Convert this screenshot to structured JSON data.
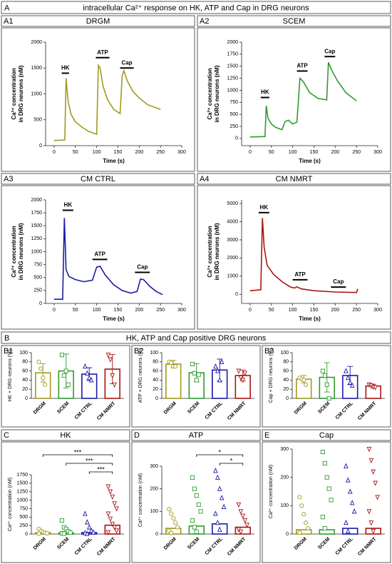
{
  "sections": [
    {
      "label": "A",
      "title": "intracellular Ca²⁺ response on HK, ATP and Cap in DRG neurons"
    },
    {
      "label": "B",
      "title": "HK, ATP and Cap positive DRG neurons"
    }
  ],
  "chart_data": [
    {
      "type": "line",
      "label": "A1",
      "title": "DRGM",
      "color": "#a09a1e",
      "x": [
        0,
        25,
        28,
        33,
        40,
        50,
        65,
        80,
        100,
        104,
        108,
        115,
        125,
        140,
        155,
        160,
        164,
        172,
        185,
        200,
        220,
        250
      ],
      "values": [
        100,
        110,
        1300,
        850,
        600,
        460,
        360,
        280,
        220,
        1550,
        1500,
        1150,
        900,
        700,
        620,
        1350,
        1450,
        1250,
        1050,
        920,
        790,
        700
      ],
      "xlim": [
        -20,
        300
      ],
      "xticks": [
        0,
        50,
        100,
        150,
        200,
        250,
        300
      ],
      "ylim": [
        0,
        2000
      ],
      "yticks": [
        0,
        500,
        1000,
        1500,
        2000
      ],
      "xlabel": "Time (s)",
      "ylabel": [
        "Ca²⁺ concentration",
        "in DRG neurons (nM)"
      ],
      "annotations": [
        {
          "text": "HK",
          "x": [
            18,
            35
          ],
          "y": 1400
        },
        {
          "text": "ATP",
          "x": [
            98,
            130
          ],
          "y": 1700
        },
        {
          "text": "Cap",
          "x": [
            155,
            187
          ],
          "y": 1500
        }
      ]
    },
    {
      "type": "line",
      "label": "A2",
      "title": "SCEM",
      "color": "#2e9b2e",
      "x": [
        0,
        35,
        38,
        42,
        50,
        60,
        75,
        82,
        90,
        100,
        110,
        117,
        125,
        140,
        160,
        180,
        184,
        190,
        205,
        225,
        250
      ],
      "values": [
        30,
        40,
        680,
        420,
        300,
        230,
        180,
        350,
        380,
        300,
        340,
        1250,
        1180,
        950,
        830,
        800,
        1580,
        1450,
        1200,
        950,
        780
      ],
      "xlim": [
        -20,
        300
      ],
      "xticks": [
        0,
        50,
        100,
        150,
        200,
        250,
        300
      ],
      "ylim": [
        -150,
        2000
      ],
      "yticks": [
        0,
        250,
        500,
        750,
        1000,
        1250,
        1500,
        1750,
        2000
      ],
      "xlabel": "Time (s)",
      "ylabel": [
        "Ca²⁺ concentration",
        "in DRG neurons (nM)"
      ],
      "annotations": [
        {
          "text": "HK",
          "x": [
            25,
            45
          ],
          "y": 850
        },
        {
          "text": "ATP",
          "x": [
            110,
            135
          ],
          "y": 1400
        },
        {
          "text": "Cap",
          "x": [
            175,
            200
          ],
          "y": 1700
        }
      ]
    },
    {
      "type": "line",
      "label": "A3",
      "title": "CM CTRL",
      "color": "#1a1aa8",
      "x": [
        0,
        20,
        24,
        28,
        35,
        50,
        70,
        90,
        100,
        108,
        120,
        140,
        160,
        180,
        195,
        203,
        210,
        225,
        240,
        255
      ],
      "values": [
        80,
        80,
        1650,
        650,
        520,
        460,
        420,
        450,
        700,
        720,
        550,
        360,
        250,
        200,
        230,
        470,
        460,
        330,
        230,
        170
      ],
      "xlim": [
        -20,
        300
      ],
      "xticks": [
        0,
        50,
        100,
        150,
        200,
        250,
        300
      ],
      "ylim": [
        0,
        2000
      ],
      "yticks": [
        0,
        250,
        500,
        750,
        1000,
        1250,
        1500,
        1750,
        2000
      ],
      "xlabel": "Time (s)",
      "ylabel": [
        "Ca²⁺ concentration",
        "in DRG neurons (nM)"
      ],
      "annotations": [
        {
          "text": "HK",
          "x": [
            20,
            45
          ],
          "y": 1800
        },
        {
          "text": "ATP",
          "x": [
            90,
            125
          ],
          "y": 850
        },
        {
          "text": "Cap",
          "x": [
            190,
            225
          ],
          "y": 600
        }
      ]
    },
    {
      "type": "line",
      "label": "A4",
      "title": "CM NMRT",
      "color": "#a81414",
      "x": [
        0,
        25,
        29,
        33,
        40,
        55,
        75,
        95,
        105,
        110,
        120,
        150,
        200,
        250,
        253
      ],
      "values": [
        200,
        250,
        4200,
        2600,
        1600,
        1100,
        700,
        400,
        350,
        420,
        300,
        200,
        130,
        100,
        300
      ],
      "xlim": [
        -20,
        300
      ],
      "xticks": [
        0,
        50,
        100,
        150,
        200,
        250,
        300
      ],
      "ylim": [
        -500,
        5200
      ],
      "yticks": [
        0,
        1000,
        2000,
        3000,
        4000,
        5000
      ],
      "xlabel": "Time (s)",
      "ylabel": [
        "Ca²⁺ concentration",
        "in DRG neurons (nM)"
      ],
      "annotations": [
        {
          "text": "HK",
          "x": [
            20,
            45
          ],
          "y": 4500
        },
        {
          "text": "ATP",
          "x": [
            100,
            135
          ],
          "y": 800
        },
        {
          "text": "Cap",
          "x": [
            190,
            225
          ],
          "y": 400
        }
      ]
    },
    {
      "type": "bar",
      "label": "B1",
      "categories": [
        "DRGM",
        "SCEM",
        "CM CTRL",
        "CM NMRT"
      ],
      "colors": [
        "#a09a1e",
        "#2e9b2e",
        "#1a1aa8",
        "#a81414"
      ],
      "markers": [
        "circle",
        "square",
        "triangle",
        "triangle-down"
      ],
      "values": [
        56,
        60,
        53,
        64
      ],
      "errors": [
        20,
        37,
        14,
        32
      ],
      "points": [
        [
          80,
          65,
          45,
          30
        ],
        [
          95,
          50,
          60,
          30
        ],
        [
          70,
          55,
          45,
          40
        ],
        [
          95,
          85,
          50,
          30
        ]
      ],
      "ylim": [
        0,
        100
      ],
      "yticks": [
        0,
        20,
        40,
        60,
        80,
        100
      ],
      "ylabel": "HK + DRG neurons (%)"
    },
    {
      "type": "bar",
      "label": "B2",
      "categories": [
        "DRGM",
        "SCEM",
        "CM CTRL",
        "CM NMRT"
      ],
      "colors": [
        "#a09a1e",
        "#2e9b2e",
        "#1a1aa8",
        "#a81414"
      ],
      "markers": [
        "circle",
        "square",
        "triangle",
        "triangle-down"
      ],
      "values": [
        75,
        56,
        62,
        50
      ],
      "errors": [
        8,
        20,
        24,
        12
      ],
      "points": [
        [
          80,
          78,
          70,
          70
        ],
        [
          75,
          55,
          40,
          52
        ],
        [
          70,
          60,
          40,
          80
        ],
        [
          60,
          45,
          40,
          55
        ]
      ],
      "ylim": [
        0,
        100
      ],
      "yticks": [
        0,
        20,
        40,
        60,
        80,
        100
      ],
      "ylabel": "ATP + DRG neurons (%)"
    },
    {
      "type": "bar",
      "label": "B3",
      "categories": [
        "DRGM",
        "SCEM",
        "CM CTRL",
        "CM NMRT"
      ],
      "colors": [
        "#a09a1e",
        "#2e9b2e",
        "#1a1aa8",
        "#a81414"
      ],
      "markers": [
        "circle",
        "square",
        "triangle",
        "triangle-down"
      ],
      "values": [
        42,
        46,
        50,
        27
      ],
      "errors": [
        8,
        32,
        20,
        4
      ],
      "points": [
        [
          45,
          42,
          40,
          30
        ],
        [
          60,
          50,
          30,
          0
        ],
        [
          60,
          45,
          35,
          28
        ],
        [
          30,
          28,
          25,
          24
        ]
      ],
      "ylim": [
        0,
        100
      ],
      "yticks": [
        0,
        20,
        40,
        60,
        80,
        100
      ],
      "ylabel": "Cap + DRG neurons (%)"
    },
    {
      "type": "bar",
      "label": "C",
      "title": "HK",
      "categories": [
        "DRGM",
        "SCEM",
        "CM CTRL",
        "CM NMRT"
      ],
      "colors": [
        "#a09a1e",
        "#2e9b2e",
        "#1a1aa8",
        "#a81414"
      ],
      "markers": [
        "circle",
        "square",
        "triangle",
        "triangle-down"
      ],
      "values": [
        40,
        30,
        40,
        260
      ],
      "points": [
        [
          150,
          90,
          60,
          40,
          20,
          10
        ],
        [
          400,
          200,
          150,
          80,
          40,
          20,
          10
        ],
        [
          600,
          350,
          200,
          100,
          50,
          30,
          10
        ],
        [
          1400,
          1250,
          1100,
          900,
          750,
          600,
          450,
          300,
          200,
          100,
          50
        ]
      ],
      "ylim": [
        0,
        1750
      ],
      "yticks": [
        0,
        250,
        500,
        750,
        1000,
        1250,
        1500,
        1750
      ],
      "ylabel": "Ca²⁺ concentration (nM)",
      "significance": [
        {
          "text": "***",
          "between": [
            "DRGM",
            "CM NMRT"
          ]
        },
        {
          "text": "***",
          "between": [
            "SCEM",
            "CM NMRT"
          ]
        },
        {
          "text": "***",
          "between": [
            "CM CTRL",
            "CM NMRT"
          ]
        }
      ]
    },
    {
      "type": "bar",
      "label": "D",
      "title": "ATP",
      "categories": [
        "DRGM",
        "SCEM",
        "CM CTRL",
        "CM NMRT"
      ],
      "colors": [
        "#a09a1e",
        "#2e9b2e",
        "#1a1aa8",
        "#a81414"
      ],
      "markers": [
        "circle",
        "square",
        "triangle",
        "triangle-down"
      ],
      "values": [
        25,
        35,
        45,
        30
      ],
      "points": [
        [
          110,
          90,
          70,
          50,
          30,
          15,
          5
        ],
        [
          250,
          200,
          170,
          130,
          100,
          60,
          30,
          10
        ],
        [
          280,
          250,
          200,
          160,
          120,
          90,
          50,
          20
        ],
        [
          130,
          100,
          80,
          60,
          40,
          20,
          10
        ]
      ],
      "ylim": [
        0,
        300
      ],
      "yticks": [
        0,
        100,
        200,
        300
      ],
      "ylabel": "Ca²⁺ concentration (nM)",
      "significance": [
        {
          "text": "*",
          "between": [
            "SCEM",
            "CM NMRT"
          ]
        },
        {
          "text": "*",
          "between": [
            "CM CTRL",
            "CM NMRT"
          ]
        }
      ]
    },
    {
      "type": "bar",
      "label": "E",
      "title": "Cap",
      "categories": [
        "DRGM",
        "SCEM",
        "CM CTRL",
        "CM NMRT"
      ],
      "colors": [
        "#a09a1e",
        "#2e9b2e",
        "#1a1aa8",
        "#a81414"
      ],
      "markers": [
        "circle",
        "square",
        "triangle",
        "triangle-down"
      ],
      "values": [
        15,
        15,
        20,
        20
      ],
      "points": [
        [
          130,
          100,
          70,
          40,
          20,
          5
        ],
        [
          290,
          250,
          200,
          160,
          120,
          60,
          20
        ],
        [
          240,
          190,
          150,
          110,
          80,
          40,
          10
        ],
        [
          300,
          260,
          220,
          180,
          130,
          80,
          40,
          10
        ]
      ],
      "ylim": [
        0,
        300
      ],
      "yticks": [
        0,
        100,
        200,
        300
      ],
      "ylabel": "Ca²⁺ concentration (nM)"
    }
  ]
}
